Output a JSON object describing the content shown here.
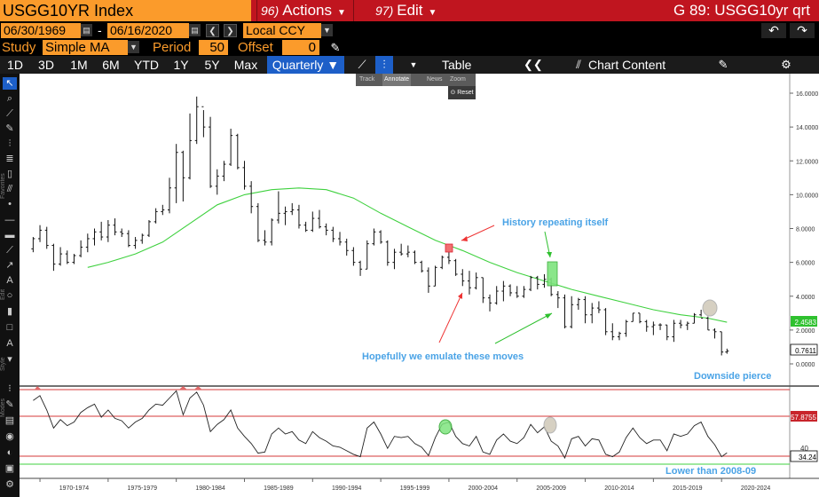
{
  "header": {
    "ticker": "USGG10YR Index",
    "actions": {
      "num": "96)",
      "label": "Actions"
    },
    "edit": {
      "num": "97)",
      "label": "Edit"
    },
    "title": "G 89: USGG10yr qrt"
  },
  "range": {
    "start": "06/30/1969",
    "end": "06/16/2020",
    "dash": "-",
    "currency": "Local CCY"
  },
  "study": {
    "label": "Study",
    "value": "Simple MA",
    "period_label": "Period",
    "period": "50",
    "offset_label": "Offset",
    "offset": "0"
  },
  "toolbar": {
    "tabs": [
      "1D",
      "3D",
      "1M",
      "6M",
      "YTD",
      "1Y",
      "5Y",
      "Max"
    ],
    "frequency": "Quarterly ▼",
    "table": "Table",
    "chart_content": "Chart Content"
  },
  "annotate_menu": {
    "items": [
      "Track",
      "Annotate",
      "News",
      "Zoom"
    ],
    "reset": "Reset"
  },
  "side_labels": [
    "Favorites",
    "Edit",
    "Style",
    "Modes"
  ],
  "chart_data": {
    "type": "line",
    "x_labels": [
      "1970-1974",
      "1975-1979",
      "1980-1984",
      "1985-1989",
      "1990-1994",
      "1995-1999",
      "2000-2004",
      "2005-2009",
      "2010-2014",
      "2015-2019",
      "2020-2024"
    ],
    "main_ylim": [
      -1,
      17
    ],
    "main_ticks": [
      "16.0000",
      "14.0000",
      "12.0000",
      "10.0000",
      "8.0000",
      "6.0000",
      "4.0000",
      "2.0000",
      "0.0000"
    ],
    "last_price": "0.7611",
    "ma_value": "2.4583",
    "rsi_value": "34.24",
    "rsi_upper": "57.8755",
    "rsi_tick": "40",
    "price_bars": [
      {
        "t": 1969.5,
        "o": 6.8,
        "h": 7.5,
        "l": 6.6,
        "c": 7.4
      },
      {
        "t": 1970.0,
        "o": 7.4,
        "h": 8.2,
        "l": 7.2,
        "c": 7.9
      },
      {
        "t": 1970.5,
        "o": 7.9,
        "h": 8.1,
        "l": 6.8,
        "c": 7.0
      },
      {
        "t": 1971.0,
        "o": 7.0,
        "h": 7.1,
        "l": 5.5,
        "c": 5.9
      },
      {
        "t": 1971.5,
        "o": 5.9,
        "h": 6.9,
        "l": 5.8,
        "c": 6.5
      },
      {
        "t": 1972.0,
        "o": 6.5,
        "h": 6.7,
        "l": 5.9,
        "c": 6.0
      },
      {
        "t": 1972.5,
        "o": 6.0,
        "h": 6.5,
        "l": 5.9,
        "c": 6.4
      },
      {
        "t": 1973.0,
        "o": 6.4,
        "h": 7.3,
        "l": 6.3,
        "c": 6.9
      },
      {
        "t": 1973.5,
        "o": 6.9,
        "h": 7.7,
        "l": 6.6,
        "c": 7.4
      },
      {
        "t": 1974.0,
        "o": 7.4,
        "h": 8.0,
        "l": 7.0,
        "c": 7.8
      },
      {
        "t": 1974.5,
        "o": 7.8,
        "h": 8.4,
        "l": 7.3,
        "c": 7.5
      },
      {
        "t": 1975.0,
        "o": 7.5,
        "h": 8.5,
        "l": 7.2,
        "c": 8.2
      },
      {
        "t": 1975.5,
        "o": 8.2,
        "h": 8.6,
        "l": 7.6,
        "c": 7.8
      },
      {
        "t": 1976.0,
        "o": 7.8,
        "h": 8.0,
        "l": 7.5,
        "c": 7.7
      },
      {
        "t": 1976.5,
        "o": 7.7,
        "h": 7.9,
        "l": 6.9,
        "c": 7.0
      },
      {
        "t": 1977.0,
        "o": 7.0,
        "h": 7.5,
        "l": 6.8,
        "c": 7.3
      },
      {
        "t": 1977.5,
        "o": 7.3,
        "h": 7.7,
        "l": 7.1,
        "c": 7.6
      },
      {
        "t": 1978.0,
        "o": 7.6,
        "h": 8.5,
        "l": 7.5,
        "c": 8.4
      },
      {
        "t": 1978.5,
        "o": 8.4,
        "h": 9.2,
        "l": 8.3,
        "c": 9.0
      },
      {
        "t": 1979.0,
        "o": 9.0,
        "h": 9.4,
        "l": 8.8,
        "c": 9.1
      },
      {
        "t": 1979.5,
        "o": 9.1,
        "h": 11.0,
        "l": 8.9,
        "c": 10.4
      },
      {
        "t": 1980.0,
        "o": 10.4,
        "h": 13.0,
        "l": 9.5,
        "c": 12.5
      },
      {
        "t": 1980.5,
        "o": 12.5,
        "h": 12.6,
        "l": 9.6,
        "c": 11.0
      },
      {
        "t": 1981.0,
        "o": 11.0,
        "h": 14.8,
        "l": 10.9,
        "c": 13.2
      },
      {
        "t": 1981.5,
        "o": 13.2,
        "h": 15.8,
        "l": 13.0,
        "c": 15.2
      },
      {
        "t": 1982.0,
        "o": 15.2,
        "h": 15.0,
        "l": 13.4,
        "c": 14.0
      },
      {
        "t": 1982.5,
        "o": 14.0,
        "h": 14.6,
        "l": 10.4,
        "c": 10.5
      },
      {
        "t": 1983.0,
        "o": 10.5,
        "h": 11.5,
        "l": 10.0,
        "c": 11.1
      },
      {
        "t": 1983.5,
        "o": 11.1,
        "h": 12.0,
        "l": 10.8,
        "c": 11.8
      },
      {
        "t": 1984.0,
        "o": 11.8,
        "h": 13.9,
        "l": 11.7,
        "c": 13.5
      },
      {
        "t": 1984.5,
        "o": 13.5,
        "h": 13.6,
        "l": 11.5,
        "c": 11.6
      },
      {
        "t": 1985.0,
        "o": 11.6,
        "h": 12.0,
        "l": 10.3,
        "c": 10.5
      },
      {
        "t": 1985.5,
        "o": 10.5,
        "h": 10.8,
        "l": 8.9,
        "c": 9.3
      },
      {
        "t": 1986.0,
        "o": 9.3,
        "h": 9.5,
        "l": 7.2,
        "c": 7.3
      },
      {
        "t": 1986.5,
        "o": 7.3,
        "h": 7.9,
        "l": 7.0,
        "c": 7.2
      },
      {
        "t": 1987.0,
        "o": 7.2,
        "h": 8.6,
        "l": 7.0,
        "c": 8.5
      },
      {
        "t": 1987.5,
        "o": 8.5,
        "h": 10.2,
        "l": 8.3,
        "c": 8.9
      },
      {
        "t": 1988.0,
        "o": 8.9,
        "h": 9.3,
        "l": 8.2,
        "c": 9.0
      },
      {
        "t": 1988.5,
        "o": 9.0,
        "h": 9.5,
        "l": 8.8,
        "c": 9.1
      },
      {
        "t": 1989.0,
        "o": 9.1,
        "h": 9.4,
        "l": 8.0,
        "c": 8.2
      },
      {
        "t": 1989.5,
        "o": 8.2,
        "h": 8.4,
        "l": 7.8,
        "c": 7.9
      },
      {
        "t": 1990.0,
        "o": 7.9,
        "h": 9.0,
        "l": 7.8,
        "c": 8.6
      },
      {
        "t": 1990.5,
        "o": 8.6,
        "h": 9.1,
        "l": 8.0,
        "c": 8.1
      },
      {
        "t": 1991.0,
        "o": 8.1,
        "h": 8.3,
        "l": 7.6,
        "c": 7.9
      },
      {
        "t": 1991.5,
        "o": 7.9,
        "h": 8.1,
        "l": 7.2,
        "c": 7.4
      },
      {
        "t": 1992.0,
        "o": 7.4,
        "h": 7.8,
        "l": 7.0,
        "c": 7.2
      },
      {
        "t": 1992.5,
        "o": 7.2,
        "h": 7.4,
        "l": 6.4,
        "c": 6.7
      },
      {
        "t": 1993.0,
        "o": 6.7,
        "h": 6.9,
        "l": 5.8,
        "c": 6.0
      },
      {
        "t": 1993.5,
        "o": 6.0,
        "h": 6.1,
        "l": 5.2,
        "c": 5.6
      },
      {
        "t": 1994.0,
        "o": 5.6,
        "h": 7.3,
        "l": 5.6,
        "c": 7.1
      },
      {
        "t": 1994.5,
        "o": 7.1,
        "h": 8.0,
        "l": 7.0,
        "c": 7.8
      },
      {
        "t": 1995.0,
        "o": 7.8,
        "h": 7.9,
        "l": 7.1,
        "c": 7.2
      },
      {
        "t": 1995.5,
        "o": 7.2,
        "h": 7.3,
        "l": 5.8,
        "c": 6.0
      },
      {
        "t": 1996.0,
        "o": 6.0,
        "h": 6.8,
        "l": 5.6,
        "c": 6.6
      },
      {
        "t": 1996.5,
        "o": 6.6,
        "h": 7.1,
        "l": 6.4,
        "c": 6.5
      },
      {
        "t": 1997.0,
        "o": 6.5,
        "h": 7.0,
        "l": 6.3,
        "c": 6.6
      },
      {
        "t": 1997.5,
        "o": 6.6,
        "h": 6.7,
        "l": 5.9,
        "c": 6.0
      },
      {
        "t": 1998.0,
        "o": 6.0,
        "h": 6.1,
        "l": 5.4,
        "c": 5.5
      },
      {
        "t": 1998.5,
        "o": 5.5,
        "h": 5.7,
        "l": 4.2,
        "c": 4.6
      },
      {
        "t": 1999.0,
        "o": 4.6,
        "h": 5.8,
        "l": 4.6,
        "c": 5.7
      },
      {
        "t": 1999.5,
        "o": 5.7,
        "h": 6.4,
        "l": 5.6,
        "c": 6.3
      },
      {
        "t": 2000.0,
        "o": 6.3,
        "h": 6.8,
        "l": 5.9,
        "c": 6.1
      },
      {
        "t": 2000.5,
        "o": 6.1,
        "h": 6.2,
        "l": 5.2,
        "c": 5.3
      },
      {
        "t": 2001.0,
        "o": 5.3,
        "h": 5.6,
        "l": 4.6,
        "c": 4.9
      },
      {
        "t": 2001.5,
        "o": 4.9,
        "h": 5.5,
        "l": 4.1,
        "c": 4.5
      },
      {
        "t": 2002.0,
        "o": 4.5,
        "h": 5.4,
        "l": 4.4,
        "c": 5.1
      },
      {
        "t": 2002.5,
        "o": 5.1,
        "h": 5.1,
        "l": 3.6,
        "c": 3.9
      },
      {
        "t": 2003.0,
        "o": 3.9,
        "h": 4.1,
        "l": 3.1,
        "c": 3.6
      },
      {
        "t": 2003.5,
        "o": 3.6,
        "h": 4.6,
        "l": 3.5,
        "c": 4.3
      },
      {
        "t": 2004.0,
        "o": 4.3,
        "h": 4.9,
        "l": 3.7,
        "c": 4.6
      },
      {
        "t": 2004.5,
        "o": 4.6,
        "h": 4.7,
        "l": 4.0,
        "c": 4.2
      },
      {
        "t": 2005.0,
        "o": 4.2,
        "h": 4.6,
        "l": 3.9,
        "c": 4.0
      },
      {
        "t": 2005.5,
        "o": 4.0,
        "h": 4.6,
        "l": 3.9,
        "c": 4.4
      },
      {
        "t": 2006.0,
        "o": 4.4,
        "h": 5.2,
        "l": 4.3,
        "c": 5.1
      },
      {
        "t": 2006.5,
        "o": 5.1,
        "h": 5.2,
        "l": 4.4,
        "c": 4.7
      },
      {
        "t": 2007.0,
        "o": 4.7,
        "h": 5.3,
        "l": 4.5,
        "c": 5.0
      },
      {
        "t": 2007.5,
        "o": 5.0,
        "h": 5.1,
        "l": 4.0,
        "c": 4.1
      },
      {
        "t": 2008.0,
        "o": 4.1,
        "h": 4.3,
        "l": 3.3,
        "c": 3.9
      },
      {
        "t": 2008.5,
        "o": 3.9,
        "h": 4.1,
        "l": 2.1,
        "c": 2.2
      },
      {
        "t": 2009.0,
        "o": 2.2,
        "h": 4.0,
        "l": 2.1,
        "c": 3.5
      },
      {
        "t": 2009.5,
        "o": 3.5,
        "h": 3.9,
        "l": 3.2,
        "c": 3.8
      },
      {
        "t": 2010.0,
        "o": 3.8,
        "h": 4.0,
        "l": 2.4,
        "c": 2.9
      },
      {
        "t": 2010.5,
        "o": 2.9,
        "h": 3.6,
        "l": 2.4,
        "c": 3.3
      },
      {
        "t": 2011.0,
        "o": 3.3,
        "h": 3.7,
        "l": 3.0,
        "c": 3.2
      },
      {
        "t": 2011.5,
        "o": 3.2,
        "h": 3.3,
        "l": 1.7,
        "c": 1.9
      },
      {
        "t": 2012.0,
        "o": 1.9,
        "h": 2.4,
        "l": 1.4,
        "c": 1.6
      },
      {
        "t": 2012.5,
        "o": 1.6,
        "h": 1.9,
        "l": 1.4,
        "c": 1.8
      },
      {
        "t": 2013.0,
        "o": 1.8,
        "h": 2.6,
        "l": 1.6,
        "c": 2.5
      },
      {
        "t": 2013.5,
        "o": 2.5,
        "h": 3.0,
        "l": 2.5,
        "c": 3.0
      },
      {
        "t": 2014.0,
        "o": 3.0,
        "h": 3.0,
        "l": 2.4,
        "c": 2.5
      },
      {
        "t": 2014.5,
        "o": 2.5,
        "h": 2.6,
        "l": 1.9,
        "c": 2.2
      },
      {
        "t": 2015.0,
        "o": 2.2,
        "h": 2.5,
        "l": 1.7,
        "c": 2.3
      },
      {
        "t": 2015.5,
        "o": 2.3,
        "h": 2.4,
        "l": 2.0,
        "c": 2.3
      },
      {
        "t": 2016.0,
        "o": 2.3,
        "h": 2.3,
        "l": 1.4,
        "c": 1.6
      },
      {
        "t": 2016.5,
        "o": 1.6,
        "h": 2.6,
        "l": 1.3,
        "c": 2.4
      },
      {
        "t": 2017.0,
        "o": 2.4,
        "h": 2.6,
        "l": 2.1,
        "c": 2.3
      },
      {
        "t": 2017.5,
        "o": 2.3,
        "h": 2.5,
        "l": 2.0,
        "c": 2.4
      },
      {
        "t": 2018.0,
        "o": 2.4,
        "h": 3.0,
        "l": 2.4,
        "c": 2.9
      },
      {
        "t": 2018.5,
        "o": 2.9,
        "h": 3.2,
        "l": 2.8,
        "c": 2.7
      },
      {
        "t": 2019.0,
        "o": 2.7,
        "h": 2.8,
        "l": 2.0,
        "c": 2.0
      },
      {
        "t": 2019.5,
        "o": 2.0,
        "h": 2.1,
        "l": 1.5,
        "c": 1.9
      },
      {
        "t": 2020.0,
        "o": 1.9,
        "h": 1.9,
        "l": 0.5,
        "c": 0.7
      },
      {
        "t": 2020.4,
        "o": 0.7,
        "h": 0.9,
        "l": 0.6,
        "c": 0.76
      }
    ],
    "moving_average": [
      [
        1973.5,
        5.7
      ],
      [
        1975.0,
        6.0
      ],
      [
        1977.0,
        6.5
      ],
      [
        1979.0,
        7.2
      ],
      [
        1981.0,
        8.3
      ],
      [
        1983.0,
        9.4
      ],
      [
        1985.0,
        10.0
      ],
      [
        1987.0,
        10.3
      ],
      [
        1989.0,
        10.4
      ],
      [
        1991.0,
        10.3
      ],
      [
        1993.0,
        9.8
      ],
      [
        1995.0,
        8.9
      ],
      [
        1997.0,
        8.1
      ],
      [
        1999.0,
        7.3
      ],
      [
        2001.0,
        6.7
      ],
      [
        2003.0,
        6.0
      ],
      [
        2005.0,
        5.4
      ],
      [
        2007.0,
        4.9
      ],
      [
        2009.0,
        4.4
      ],
      [
        2011.0,
        4.0
      ],
      [
        2013.0,
        3.6
      ],
      [
        2015.0,
        3.2
      ],
      [
        2017.0,
        2.9
      ],
      [
        2019.0,
        2.7
      ],
      [
        2020.4,
        2.4583
      ]
    ],
    "rsi": [
      [
        1969.5,
        78
      ],
      [
        1970.0,
        82
      ],
      [
        1970.5,
        70
      ],
      [
        1971.0,
        55
      ],
      [
        1971.5,
        62
      ],
      [
        1972.0,
        57
      ],
      [
        1972.5,
        60
      ],
      [
        1973.0,
        68
      ],
      [
        1973.5,
        72
      ],
      [
        1974.0,
        75
      ],
      [
        1974.5,
        64
      ],
      [
        1975.0,
        70
      ],
      [
        1975.5,
        63
      ],
      [
        1976.0,
        61
      ],
      [
        1976.5,
        55
      ],
      [
        1977.0,
        60
      ],
      [
        1977.5,
        63
      ],
      [
        1978.0,
        70
      ],
      [
        1978.5,
        75
      ],
      [
        1979.0,
        74
      ],
      [
        1979.5,
        80
      ],
      [
        1980.0,
        86
      ],
      [
        1980.5,
        66
      ],
      [
        1981.0,
        80
      ],
      [
        1981.5,
        85
      ],
      [
        1982.0,
        74
      ],
      [
        1982.5,
        52
      ],
      [
        1983.0,
        58
      ],
      [
        1983.5,
        62
      ],
      [
        1984.0,
        70
      ],
      [
        1984.5,
        55
      ],
      [
        1985.0,
        48
      ],
      [
        1985.5,
        42
      ],
      [
        1986.0,
        34
      ],
      [
        1986.5,
        35
      ],
      [
        1987.0,
        50
      ],
      [
        1987.5,
        55
      ],
      [
        1988.0,
        50
      ],
      [
        1988.5,
        52
      ],
      [
        1989.0,
        45
      ],
      [
        1989.5,
        42
      ],
      [
        1990.0,
        52
      ],
      [
        1990.5,
        47
      ],
      [
        1991.0,
        44
      ],
      [
        1991.5,
        40
      ],
      [
        1992.0,
        39
      ],
      [
        1992.5,
        36
      ],
      [
        1993.0,
        33
      ],
      [
        1993.5,
        31
      ],
      [
        1994.0,
        55
      ],
      [
        1994.5,
        60
      ],
      [
        1995.0,
        50
      ],
      [
        1995.5,
        38
      ],
      [
        1996.0,
        48
      ],
      [
        1996.5,
        47
      ],
      [
        1997.0,
        48
      ],
      [
        1997.5,
        42
      ],
      [
        1998.0,
        39
      ],
      [
        1998.5,
        32
      ],
      [
        1999.0,
        47
      ],
      [
        1999.5,
        58
      ],
      [
        2000.0,
        60
      ],
      [
        2000.5,
        48
      ],
      [
        2001.0,
        42
      ],
      [
        2001.5,
        40
      ],
      [
        2002.0,
        48
      ],
      [
        2002.5,
        35
      ],
      [
        2003.0,
        33
      ],
      [
        2003.5,
        45
      ],
      [
        2004.0,
        50
      ],
      [
        2004.5,
        44
      ],
      [
        2005.0,
        42
      ],
      [
        2005.5,
        47
      ],
      [
        2006.0,
        58
      ],
      [
        2006.5,
        51
      ],
      [
        2007.0,
        56
      ],
      [
        2007.5,
        44
      ],
      [
        2008.0,
        40
      ],
      [
        2008.5,
        30
      ],
      [
        2009.0,
        46
      ],
      [
        2009.5,
        48
      ],
      [
        2010.0,
        40
      ],
      [
        2010.5,
        46
      ],
      [
        2011.0,
        45
      ],
      [
        2011.5,
        33
      ],
      [
        2012.0,
        31
      ],
      [
        2012.5,
        35
      ],
      [
        2013.0,
        47
      ],
      [
        2013.5,
        55
      ],
      [
        2014.0,
        47
      ],
      [
        2014.5,
        42
      ],
      [
        2015.0,
        45
      ],
      [
        2015.5,
        45
      ],
      [
        2016.0,
        36
      ],
      [
        2016.5,
        50
      ],
      [
        2017.0,
        48
      ],
      [
        2017.5,
        50
      ],
      [
        2018.0,
        57
      ],
      [
        2018.5,
        60
      ],
      [
        2019.0,
        48
      ],
      [
        2019.5,
        41
      ],
      [
        2020.0,
        31
      ],
      [
        2020.4,
        34.24
      ]
    ]
  },
  "annotations": {
    "history": "History repeating itself",
    "emulate": "Hopefully we emulate these moves",
    "downside": "Downside pierce",
    "lower": "Lower than 2008-09"
  }
}
